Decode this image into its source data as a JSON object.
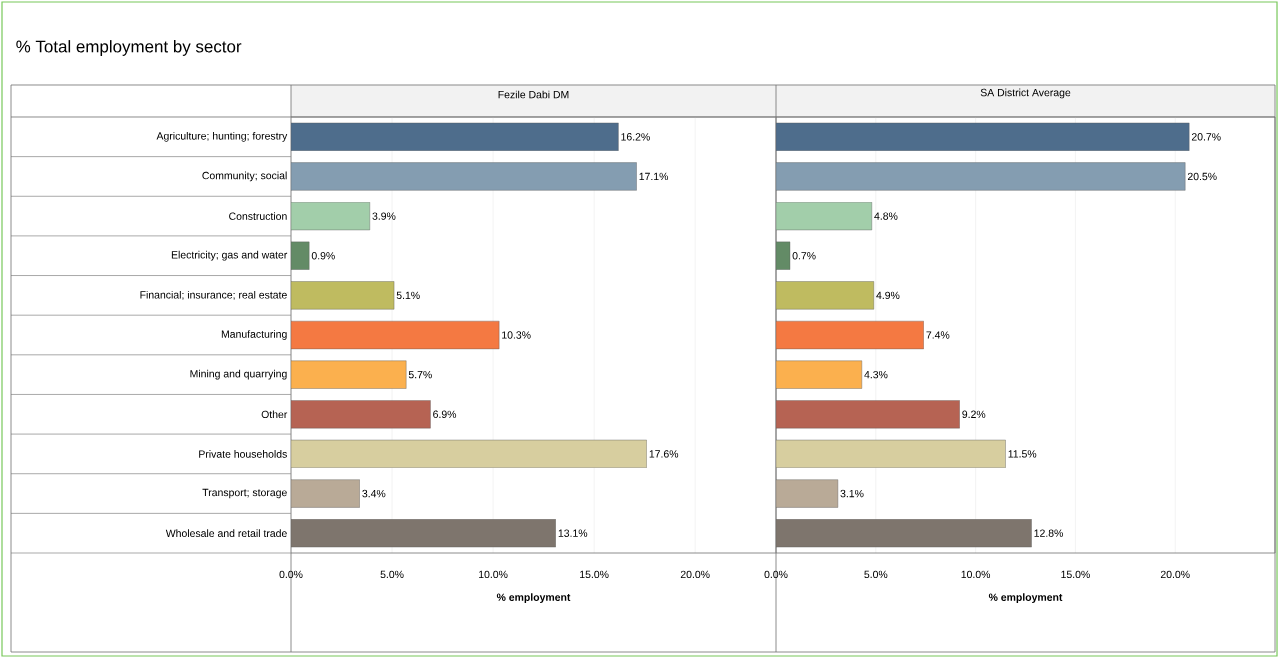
{
  "chart_data": [
    {
      "type": "bar",
      "orientation": "horizontal",
      "title": "% Total employment by sector",
      "subtitle": "Fezile Dabi DM",
      "xlabel": "% employment",
      "categories": [
        "Agriculture; hunting; forestry",
        "Community; social",
        "Construction",
        "Electricity; gas and water",
        "Financial; insurance; real estate",
        "Manufacturing",
        "Mining and quarrying",
        "Other",
        "Private households",
        "Transport; storage",
        "Wholesale and retail trade"
      ],
      "values": [
        16.2,
        17.1,
        3.9,
        0.9,
        5.1,
        10.3,
        5.7,
        6.9,
        17.6,
        3.4,
        13.1
      ],
      "value_labels": [
        "16.2%",
        "17.1%",
        "3.9%",
        "0.9%",
        "5.1%",
        "10.3%",
        "5.7%",
        "6.9%",
        "17.6%",
        "3.4%",
        "13.1%"
      ],
      "colors": [
        "#4e6d8c",
        "#849db1",
        "#a2ceaa",
        "#638b66",
        "#bfbb60",
        "#f47942",
        "#fbb04e",
        "#b66353",
        "#d7ce9f",
        "#b9aa97",
        "#7e756d"
      ],
      "xlim": [
        0,
        24
      ],
      "xticks": [
        {
          "value": 0,
          "label": "0.0%"
        },
        {
          "value": 5,
          "label": "5.0%"
        },
        {
          "value": 10,
          "label": "10.0%"
        },
        {
          "value": 15,
          "label": "15.0%"
        },
        {
          "value": 20,
          "label": "20.0%"
        }
      ],
      "grid": "x"
    },
    {
      "type": "bar",
      "orientation": "horizontal",
      "subtitle": "SA District Average",
      "xlabel": "% employment",
      "values": [
        20.7,
        20.5,
        4.8,
        0.7,
        4.9,
        7.4,
        4.3,
        9.2,
        11.5,
        3.1,
        12.8
      ],
      "value_labels": [
        "20.7%",
        "20.5%",
        "4.8%",
        "0.7%",
        "4.9%",
        "7.4%",
        "4.3%",
        "9.2%",
        "11.5%",
        "3.1%",
        "12.8%"
      ],
      "colors": [
        "#4e6d8c",
        "#849db1",
        "#a2ceaa",
        "#638b66",
        "#bfbb60",
        "#f47942",
        "#fbb04e",
        "#b66353",
        "#d7ce9f",
        "#b9aa97",
        "#7e756d"
      ],
      "xlim": [
        0,
        25
      ],
      "xticks": [
        {
          "value": 0,
          "label": "0.0%"
        },
        {
          "value": 5,
          "label": "5.0%"
        },
        {
          "value": 10,
          "label": "10.0%"
        },
        {
          "value": 15,
          "label": "15.0%"
        },
        {
          "value": 20,
          "label": "20.0%"
        }
      ],
      "grid": "x",
      "tick_labels": "x"
    }
  ]
}
